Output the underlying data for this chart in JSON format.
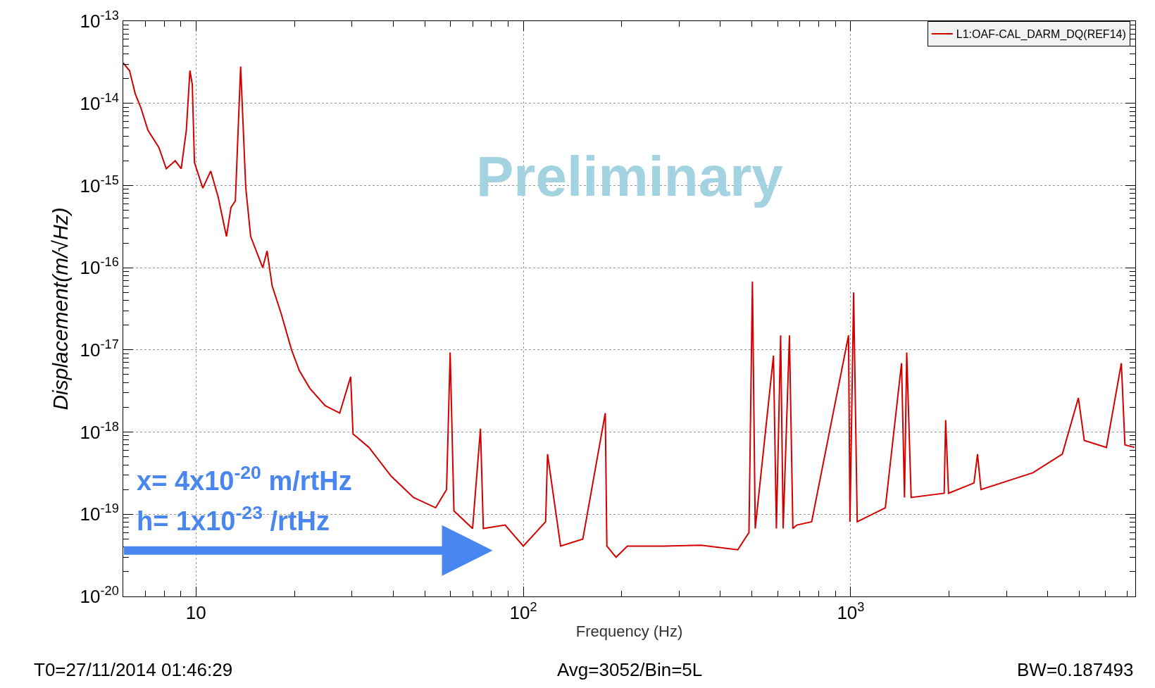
{
  "chart_data": {
    "type": "line",
    "xlabel": "Frequency (Hz)",
    "ylabel": "Displacement(m/√Hz)",
    "x": [
      6,
      6.27,
      6.53,
      6.78,
      7.14,
      7.71,
      8.12,
      8.65,
      9.02,
      9.35,
      9.59,
      9.75,
      9.9,
      10.5,
      11.1,
      11.7,
      12.4,
      12.8,
      13.2,
      13.7,
      14.2,
      14.7,
      16.0,
      16.5,
      17.1,
      18.2,
      19.6,
      20.7,
      22.3,
      24.8,
      27.5,
      29.7,
      30.2,
      33.8,
      39.5,
      46.2,
      54,
      58.3,
      59.8,
      61.4,
      70,
      74,
      75.5,
      88,
      100,
      117,
      118.6,
      130,
      152,
      178,
      180,
      192,
      208,
      269,
      349,
      452,
      489,
      501,
      511,
      581,
      593,
      611,
      622,
      650,
      666,
      685,
      760,
      985,
      995,
      1021,
      1047,
      1276,
      1430,
      1460,
      1483,
      1530,
      1930,
      1950,
      1990,
      2380,
      2440,
      2500,
      3600,
      4430,
      4960,
      5170,
      6040,
      6710,
      6880,
      7360
    ],
    "series": [
      {
        "name": "L1:OAF-CAL_DARM_DQ(REF14)",
        "color": "#d40000",
        "values": [
          3.1e-14,
          2.5e-14,
          1.3e-14,
          9e-15,
          4.7e-15,
          2.9e-15,
          1.6e-15,
          2e-15,
          1.6e-15,
          4.7e-15,
          2.5e-14,
          1.7e-14,
          1.9e-15,
          9.3e-16,
          1.5e-15,
          7.2e-16,
          2.4e-16,
          5.4e-16,
          6.5e-16,
          2.8e-14,
          9.5e-16,
          2.4e-16,
          1e-16,
          1.6e-16,
          6e-17,
          2.8e-17,
          1e-17,
          5.6e-18,
          3.4e-18,
          2.1e-18,
          1.7e-18,
          4.7e-18,
          9.5e-19,
          6.5e-19,
          2.9e-19,
          1.6e-19,
          1.2e-19,
          2e-19,
          9.3e-18,
          1.1e-19,
          6.7e-20,
          1.1e-18,
          6.7e-20,
          7.4e-20,
          4.1e-20,
          8.1e-20,
          5.4e-19,
          4.1e-20,
          5e-20,
          1.7e-18,
          4.1e-20,
          3e-20,
          4.1e-20,
          4.1e-20,
          4.2e-20,
          3.7e-20,
          6e-20,
          6.8e-17,
          6.7e-20,
          8.5e-18,
          6.7e-20,
          1.5e-17,
          6.7e-20,
          1.5e-17,
          6.7e-20,
          7.4e-20,
          8.1e-20,
          1.5e-17,
          8.1e-20,
          5e-17,
          8.1e-20,
          1.2e-19,
          6.9e-18,
          1.6e-19,
          9.3e-18,
          1.6e-19,
          1.8e-19,
          1.4e-18,
          1.8e-19,
          2.4e-19,
          5.4e-19,
          2e-19,
          3.2e-19,
          5.4e-19,
          2.6e-18,
          7.9e-19,
          6.5e-19,
          6.9e-18,
          7e-19,
          6.5e-19
        ]
      }
    ],
    "log": "xy",
    "xlim": [
      6,
      7400
    ],
    "ylim": [
      1e-20,
      1e-13
    ],
    "xticks": [
      10,
      {
        "value": 100,
        "label": "10$^{2}$"
      },
      {
        "value": 1000,
        "label": "10$^{3}$"
      }
    ],
    "yticks": [
      {
        "value": 1e-20,
        "label": "10$^{-20}$"
      },
      {
        "value": 1e-19,
        "label": "10$^{-19}$"
      },
      {
        "value": 1e-18,
        "label": "10$^{-18}$"
      },
      {
        "value": 1e-17,
        "label": "10$^{-17}$"
      },
      {
        "value": 1e-16,
        "label": "10$^{-16}$"
      },
      {
        "value": 1e-15,
        "label": "10$^{-15}$"
      },
      {
        "value": 1e-14,
        "label": "10$^{-14}$"
      },
      {
        "value": 1e-13,
        "label": "10$^{-13}$"
      }
    ],
    "grid": true,
    "legend": "top right",
    "line_style": "solid",
    "annotations": [
      "Preliminary",
      "x= 4x10$^{-20}$ m/rtHz",
      "h= 1x10$^{-23}$ /rtHz",
      "T0=27/11/2014 01:46:29",
      "Avg=3052/Bin=5L",
      "BW=0.187493"
    ]
  }
}
